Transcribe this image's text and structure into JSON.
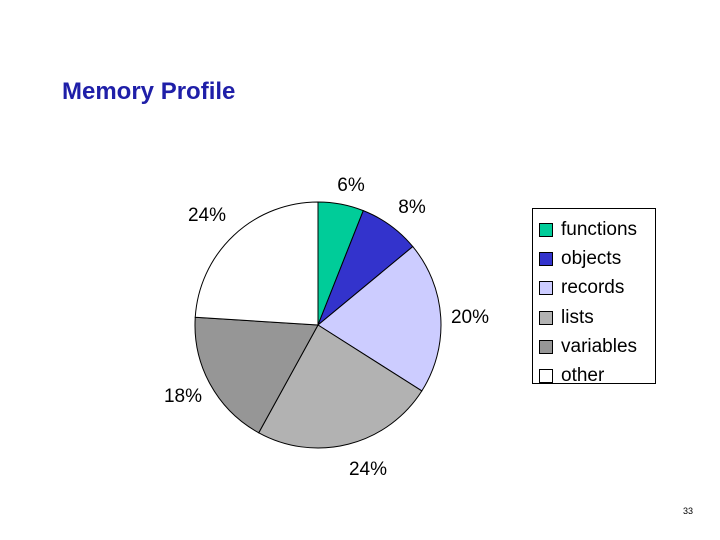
{
  "slide": {
    "title": "Memory Profile",
    "page_number": "33"
  },
  "chart_data": {
    "type": "pie",
    "title": "",
    "slices": [
      {
        "name": "functions",
        "value": 6,
        "label": "6%",
        "color": "#00cc99"
      },
      {
        "name": "objects",
        "value": 8,
        "label": "8%",
        "color": "#3333cc"
      },
      {
        "name": "records",
        "value": 20,
        "label": "20%",
        "color": "#ccccff"
      },
      {
        "name": "lists",
        "value": 24,
        "label": "24%",
        "color": "#b2b2b2"
      },
      {
        "name": "variables",
        "value": 18,
        "label": "18%",
        "color": "#969696"
      },
      {
        "name": "other",
        "value": 24,
        "label": "24%",
        "color": "#ffffff"
      }
    ],
    "legend_position": "right"
  }
}
